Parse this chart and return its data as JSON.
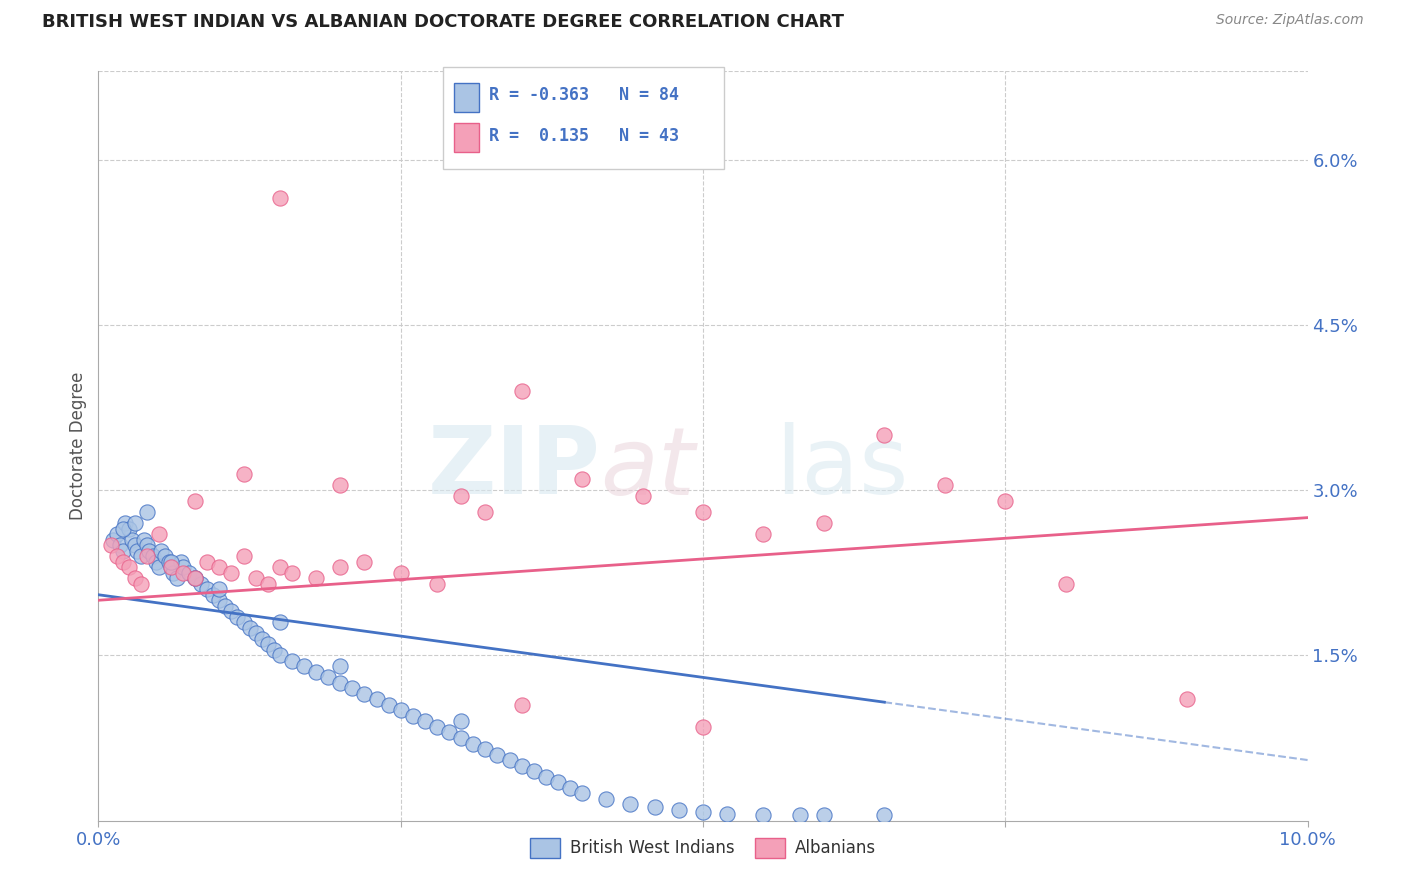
{
  "title": "BRITISH WEST INDIAN VS ALBANIAN DOCTORATE DEGREE CORRELATION CHART",
  "source_text": "Source: ZipAtlas.com",
  "ylabel": "Doctorate Degree",
  "r_bwi": -0.363,
  "n_bwi": 84,
  "r_alb": 0.135,
  "n_alb": 43,
  "xlim": [
    0.0,
    10.0
  ],
  "ylim": [
    0.0,
    6.8
  ],
  "color_bwi": "#aac4e4",
  "color_alb": "#f4a0b8",
  "line_color_bwi": "#4472c4",
  "line_color_alb": "#e8608a",
  "background_color": "#ffffff",
  "grid_color": "#cccccc",
  "legend_r_color": "#4472c4",
  "bwi_x": [
    0.12,
    0.15,
    0.18,
    0.2,
    0.22,
    0.25,
    0.28,
    0.3,
    0.32,
    0.35,
    0.38,
    0.4,
    0.42,
    0.45,
    0.48,
    0.5,
    0.52,
    0.55,
    0.58,
    0.6,
    0.62,
    0.65,
    0.68,
    0.7,
    0.75,
    0.8,
    0.85,
    0.9,
    0.95,
    1.0,
    1.05,
    1.1,
    1.15,
    1.2,
    1.25,
    1.3,
    1.35,
    1.4,
    1.45,
    1.5,
    1.6,
    1.7,
    1.8,
    1.9,
    2.0,
    2.1,
    2.2,
    2.3,
    2.4,
    2.5,
    2.6,
    2.7,
    2.8,
    2.9,
    3.0,
    3.1,
    3.2,
    3.3,
    3.4,
    3.5,
    3.6,
    3.7,
    3.8,
    3.9,
    4.0,
    4.2,
    4.4,
    4.6,
    4.8,
    5.0,
    5.2,
    5.5,
    5.8,
    6.0,
    6.5,
    0.2,
    0.3,
    0.4,
    0.6,
    0.8,
    1.0,
    1.5,
    2.0,
    3.0
  ],
  "bwi_y": [
    2.55,
    2.6,
    2.5,
    2.45,
    2.7,
    2.65,
    2.55,
    2.5,
    2.45,
    2.4,
    2.55,
    2.5,
    2.45,
    2.4,
    2.35,
    2.3,
    2.45,
    2.4,
    2.35,
    2.3,
    2.25,
    2.2,
    2.35,
    2.3,
    2.25,
    2.2,
    2.15,
    2.1,
    2.05,
    2.0,
    1.95,
    1.9,
    1.85,
    1.8,
    1.75,
    1.7,
    1.65,
    1.6,
    1.55,
    1.5,
    1.45,
    1.4,
    1.35,
    1.3,
    1.25,
    1.2,
    1.15,
    1.1,
    1.05,
    1.0,
    0.95,
    0.9,
    0.85,
    0.8,
    0.75,
    0.7,
    0.65,
    0.6,
    0.55,
    0.5,
    0.45,
    0.4,
    0.35,
    0.3,
    0.25,
    0.2,
    0.15,
    0.12,
    0.1,
    0.08,
    0.06,
    0.05,
    0.05,
    0.05,
    0.05,
    2.65,
    2.7,
    2.8,
    2.35,
    2.2,
    2.1,
    1.8,
    1.4,
    0.9
  ],
  "alb_x": [
    0.1,
    0.15,
    0.2,
    0.25,
    0.3,
    0.35,
    0.4,
    0.5,
    0.6,
    0.7,
    0.8,
    0.9,
    1.0,
    1.1,
    1.2,
    1.3,
    1.4,
    1.5,
    1.6,
    1.8,
    2.0,
    2.2,
    2.5,
    2.8,
    3.0,
    3.2,
    3.5,
    4.0,
    4.5,
    5.0,
    5.5,
    6.0,
    6.5,
    7.0,
    7.5,
    8.0,
    9.0,
    1.5,
    0.8,
    1.2,
    2.0,
    3.5,
    5.0
  ],
  "alb_y": [
    2.5,
    2.4,
    2.35,
    2.3,
    2.2,
    2.15,
    2.4,
    2.6,
    2.3,
    2.25,
    2.2,
    2.35,
    2.3,
    2.25,
    2.4,
    2.2,
    2.15,
    2.3,
    2.25,
    2.2,
    2.3,
    2.35,
    2.25,
    2.15,
    2.95,
    2.8,
    3.9,
    3.1,
    2.95,
    2.8,
    2.6,
    2.7,
    3.5,
    3.05,
    2.9,
    2.15,
    1.1,
    5.65,
    2.9,
    3.15,
    3.05,
    1.05,
    0.85
  ],
  "bwi_line_x0": 0.0,
  "bwi_line_x1": 10.0,
  "bwi_line_y0": 2.05,
  "bwi_line_y1": 0.55,
  "bwi_solid_end": 6.5,
  "alb_line_x0": 0.0,
  "alb_line_x1": 10.0,
  "alb_line_y0": 2.0,
  "alb_line_y1": 2.75
}
